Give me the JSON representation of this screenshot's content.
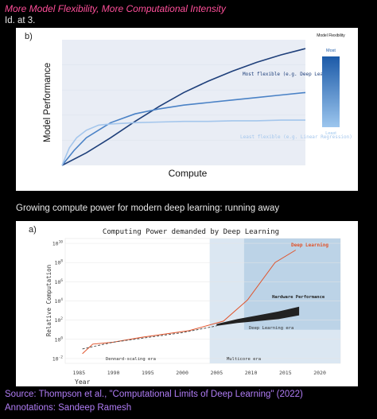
{
  "header_title": "More Model Flexibility, More Computational Intensity",
  "header_sub": "Id. at 3.",
  "section2_title": "Growing compute power for modern deep learning: running away",
  "source": "Source: Thompson et al., \"Computational Limits of Deep Learning\" (2022)",
  "annotations": "Annotations: Sandeep Ramesh",
  "chart_data": [
    {
      "type": "line",
      "panel_label": "b)",
      "title": "",
      "xlabel": "Compute",
      "ylabel": "Model Performance",
      "xlim": [
        0,
        100
      ],
      "ylim": [
        0,
        100
      ],
      "series": [
        {
          "name": "Most flexible (e.g. Deep Learning)",
          "color": "#1e3f7a",
          "x": [
            0,
            10,
            20,
            30,
            40,
            50,
            60,
            70,
            80,
            90,
            100
          ],
          "y": [
            0,
            10,
            22,
            35,
            47,
            58,
            67,
            75,
            82,
            88,
            93
          ]
        },
        {
          "name": "",
          "color": "#4a82c6",
          "x": [
            0,
            5,
            10,
            20,
            30,
            40,
            50,
            60,
            70,
            80,
            90,
            100
          ],
          "y": [
            0,
            12,
            22,
            34,
            41,
            45,
            48,
            50,
            52,
            54,
            56,
            58
          ]
        },
        {
          "name": "Least flexible (e.g. Linear Regression)",
          "color": "#a4c6ec",
          "x": [
            0,
            3,
            6,
            10,
            15,
            20,
            30,
            40,
            50,
            60,
            70,
            80,
            90,
            100
          ],
          "y": [
            0,
            14,
            22,
            28,
            32,
            33,
            34,
            34.5,
            35,
            35,
            35.5,
            35.5,
            36,
            36
          ]
        }
      ],
      "legend": {
        "title": "Model Flexibility",
        "top": "Most",
        "bottom": "Least"
      }
    },
    {
      "type": "line",
      "panel_label": "a)",
      "title": "Computing Power demanded by Deep Learning",
      "xlabel": "Year",
      "ylabel": "Relative Computation",
      "y_scale": "log",
      "xlim": [
        1983,
        2023
      ],
      "ylim_exp": [
        -2.5,
        10.5
      ],
      "xticks": [
        "1985",
        "1990",
        "1995",
        "2000",
        "2005",
        "2010",
        "2015",
        "2020"
      ],
      "yticks": [
        "10^-2",
        "10^0",
        "10^2",
        "10^4",
        "10^6",
        "10^8",
        "10^10"
      ],
      "series": [
        {
          "name": "Deep Learning",
          "color": "#e0532b",
          "x": [
            1985.5,
            1987,
            1990,
            1994,
            2001,
            2006,
            2009.5,
            2013.5,
            2016.5
          ],
          "y_exp": [
            -1.5,
            -0.5,
            -0.3,
            0.2,
            0.9,
            1.9,
            4.1,
            8.0,
            9.3
          ]
        },
        {
          "name": "",
          "color": "#555555",
          "dashed": true,
          "x": [
            1985.5,
            1990,
            1995,
            2000,
            2005
          ],
          "y_exp": [
            -1.0,
            -0.3,
            0.2,
            0.7,
            1.4
          ]
        }
      ],
      "band": {
        "name": "Hardware Performance",
        "color": "#222222",
        "x": [
          2005,
          2008,
          2011,
          2014,
          2017
        ],
        "y_low_exp": [
          1.4,
          1.7,
          1.9,
          2.1,
          2.5
        ],
        "y_high_exp": [
          1.6,
          2.1,
          2.5,
          2.9,
          3.4
        ]
      },
      "eras": [
        {
          "label": "Dennard-scaling era"
        },
        {
          "label": "Multicore era",
          "x": [
            2004,
            2023
          ]
        },
        {
          "label": "Deep Learning era",
          "x": [
            2009,
            2023
          ],
          "y_exp": [
            1.0,
            10.5
          ]
        }
      ]
    }
  ]
}
